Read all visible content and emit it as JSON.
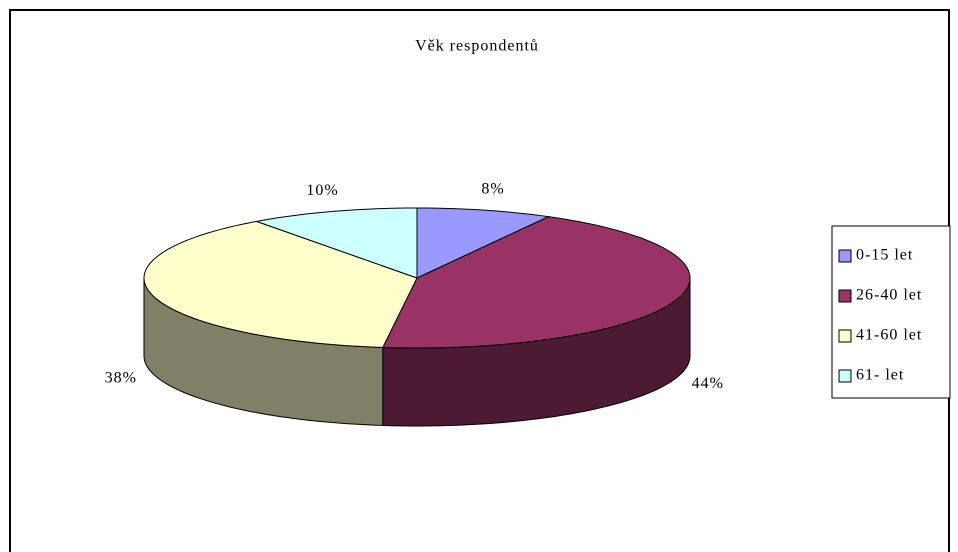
{
  "chart_data": {
    "type": "pie",
    "title": "Věk respondentů",
    "categories": [
      "0-15 let",
      "26-40 let",
      "41-60 let",
      "61- let"
    ],
    "values": [
      8,
      44,
      38,
      10
    ],
    "value_labels": [
      "8%",
      "44%",
      "38%",
      "10%"
    ],
    "colors": [
      "#9999ff",
      "#993366",
      "#ffffcc",
      "#ccffff"
    ],
    "legend": "right"
  }
}
